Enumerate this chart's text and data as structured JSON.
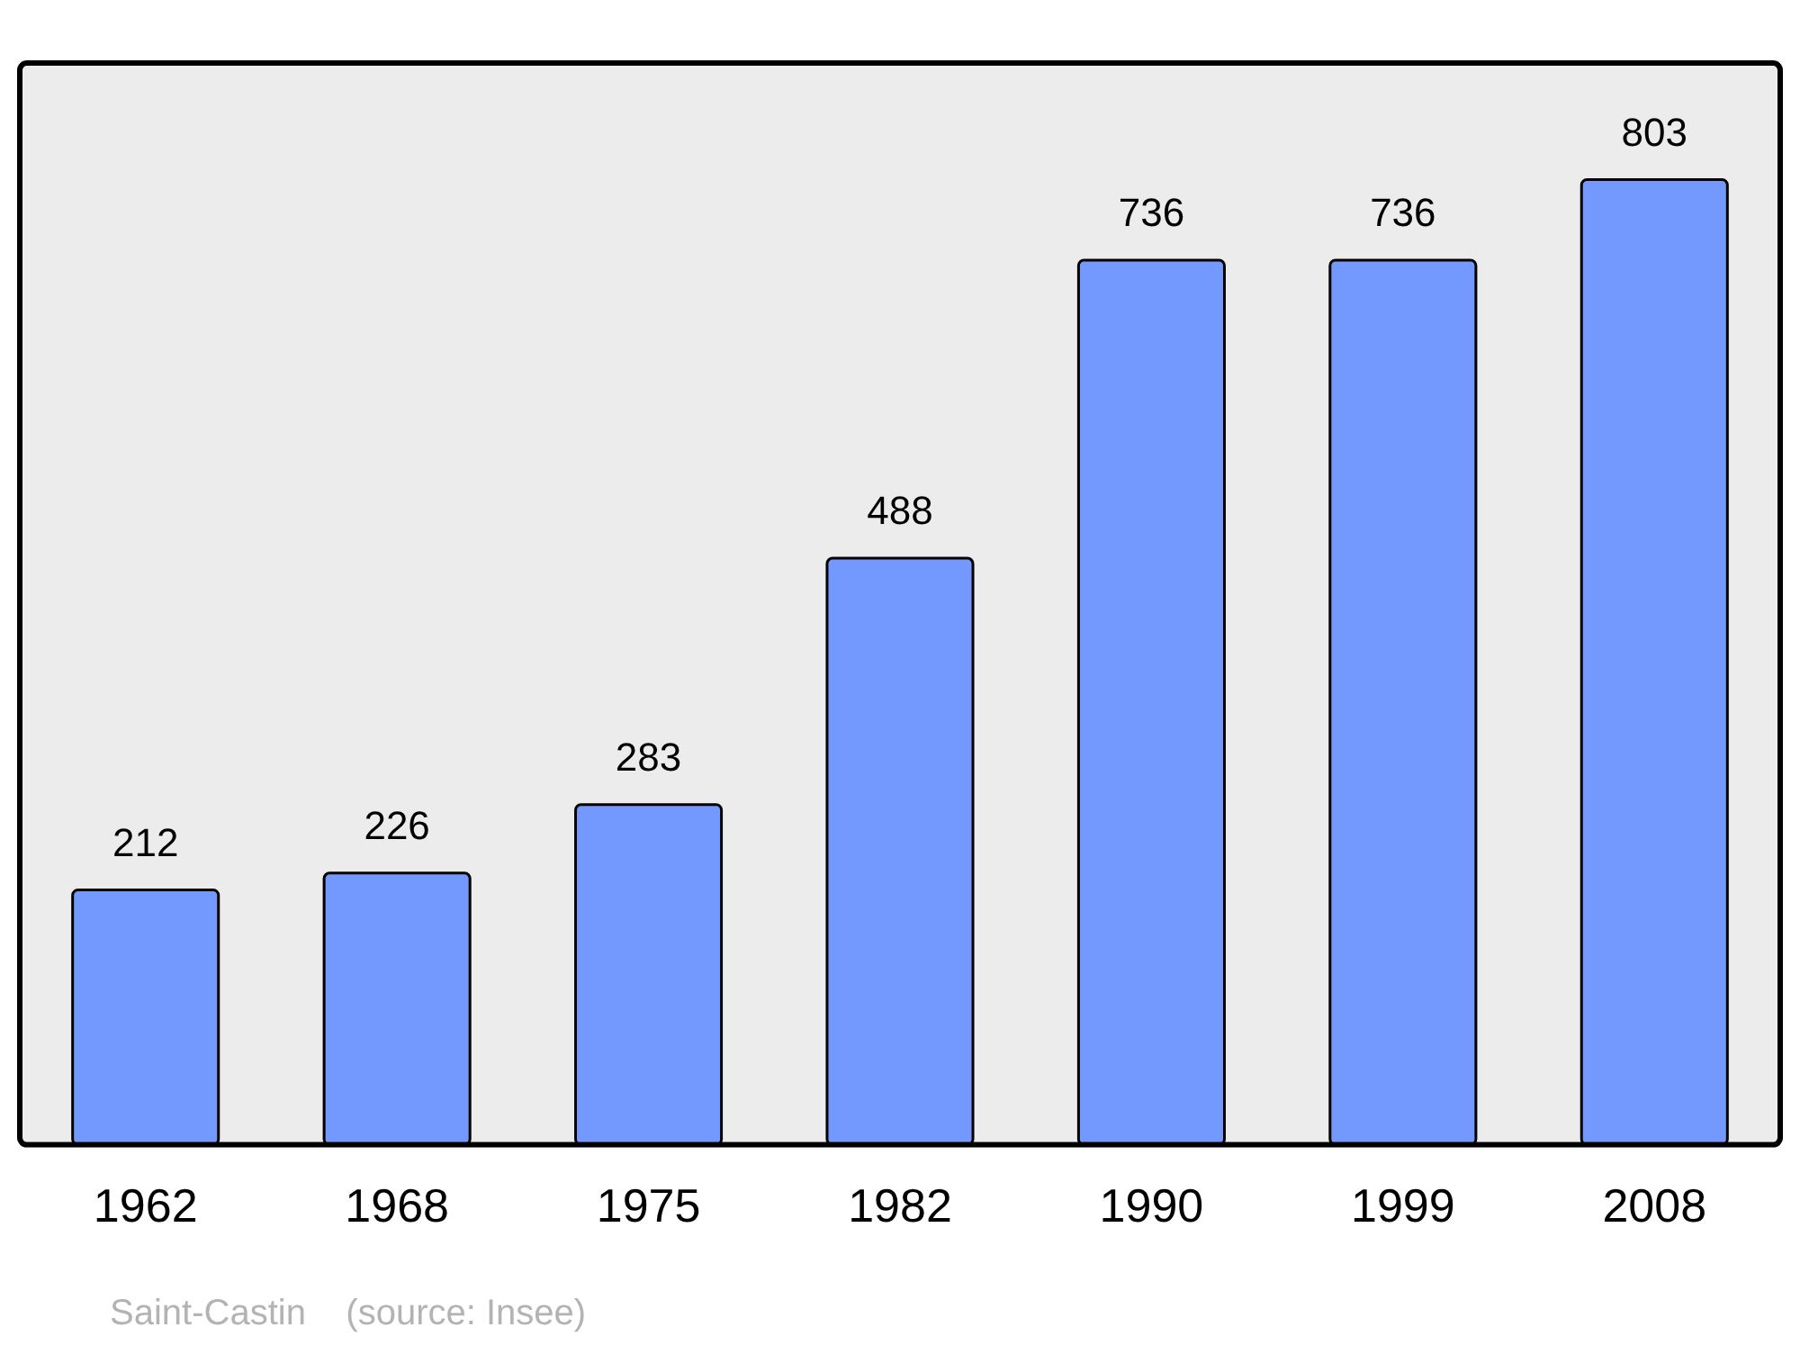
{
  "chart_data": {
    "type": "bar",
    "categories": [
      "1962",
      "1968",
      "1975",
      "1982",
      "1990",
      "1999",
      "2008"
    ],
    "values": [
      212,
      226,
      283,
      488,
      736,
      736,
      803
    ],
    "color": "#7399ff",
    "data_labels": true,
    "grid": false,
    "annotations": [
      "Saint-Castin    (source: Insee)"
    ]
  }
}
